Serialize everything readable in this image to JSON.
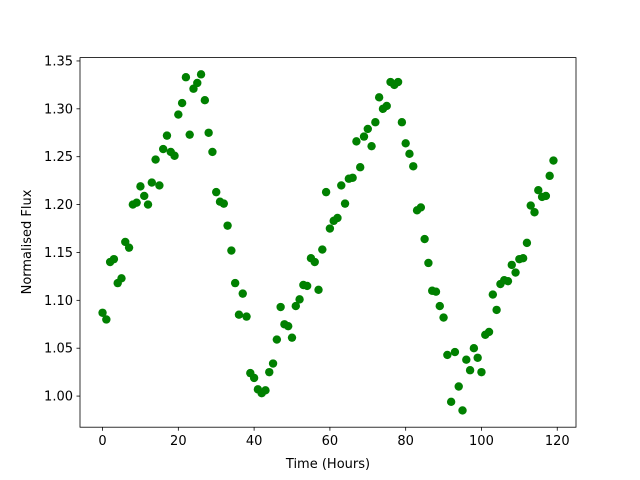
{
  "chart_data": {
    "type": "scatter",
    "xlabel": "Time (Hours)",
    "ylabel": "Normalised Flux",
    "color": "#008000",
    "x": [
      0,
      1,
      2,
      3,
      4,
      5,
      6,
      7,
      8,
      9,
      10,
      11,
      12,
      13,
      14,
      15,
      16,
      17,
      18,
      19,
      20,
      21,
      22,
      23,
      24,
      25,
      26,
      27,
      28,
      29,
      30,
      31,
      32,
      33,
      34,
      35,
      36,
      37,
      38,
      39,
      40,
      41,
      42,
      43,
      44,
      45,
      46,
      47,
      48,
      49,
      50,
      51,
      52,
      53,
      54,
      55,
      56,
      57,
      58,
      59,
      60,
      61,
      62,
      63,
      64,
      65,
      66,
      67,
      68,
      69,
      70,
      71,
      72,
      73,
      74,
      75,
      76,
      77,
      78,
      79,
      80,
      81,
      82,
      83,
      84,
      85,
      86,
      87,
      88,
      89,
      90,
      91,
      92,
      93,
      94,
      95,
      96,
      97,
      98,
      99,
      100,
      101,
      102,
      103,
      104,
      105,
      106,
      107,
      108,
      109,
      110,
      111,
      112,
      113,
      114,
      115,
      116,
      117,
      118,
      119
    ],
    "values": [
      1.087,
      1.08,
      1.14,
      1.143,
      1.118,
      1.123,
      1.161,
      1.155,
      1.2,
      1.202,
      1.219,
      1.209,
      1.2,
      1.223,
      1.247,
      1.22,
      1.258,
      1.272,
      1.255,
      1.251,
      1.294,
      1.306,
      1.333,
      1.273,
      1.321,
      1.327,
      1.336,
      1.309,
      1.275,
      1.255,
      1.213,
      1.203,
      1.201,
      1.178,
      1.152,
      1.118,
      1.085,
      1.107,
      1.083,
      1.024,
      1.019,
      1.007,
      1.003,
      1.006,
      1.025,
      1.034,
      1.059,
      1.093,
      1.075,
      1.073,
      1.061,
      1.094,
      1.101,
      1.116,
      1.115,
      1.144,
      1.14,
      1.111,
      1.153,
      1.213,
      1.175,
      1.183,
      1.186,
      1.22,
      1.201,
      1.227,
      1.228,
      1.266,
      1.239,
      1.271,
      1.279,
      1.261,
      1.286,
      1.312,
      1.3,
      1.303,
      1.328,
      1.325,
      1.328,
      1.286,
      1.264,
      1.253,
      1.24,
      1.194,
      1.197,
      1.164,
      1.139,
      1.11,
      1.109,
      1.094,
      1.082,
      1.043,
      0.994,
      1.046,
      1.01,
      0.985,
      1.038,
      1.027,
      1.05,
      1.04,
      1.025,
      1.064,
      1.067,
      1.106,
      1.09,
      1.117,
      1.121,
      1.12,
      1.137,
      1.129,
      1.143,
      1.144,
      1.16,
      1.199,
      1.192,
      1.215,
      1.208,
      1.209,
      1.23,
      1.246
    ],
    "xlim": [
      -5.95,
      124.95
    ],
    "ylim": [
      0.9675,
      1.3535
    ],
    "xticks": [
      0,
      20,
      40,
      60,
      80,
      100,
      120
    ],
    "yticks": [
      {
        "value": 1.0,
        "label": "1.00"
      },
      {
        "value": 1.05,
        "label": "1.05"
      },
      {
        "value": 1.1,
        "label": "1.10"
      },
      {
        "value": 1.15,
        "label": "1.15"
      },
      {
        "value": 1.2,
        "label": "1.20"
      },
      {
        "value": 1.25,
        "label": "1.25"
      },
      {
        "value": 1.3,
        "label": "1.30"
      },
      {
        "value": 1.35,
        "label": "1.35"
      }
    ]
  }
}
